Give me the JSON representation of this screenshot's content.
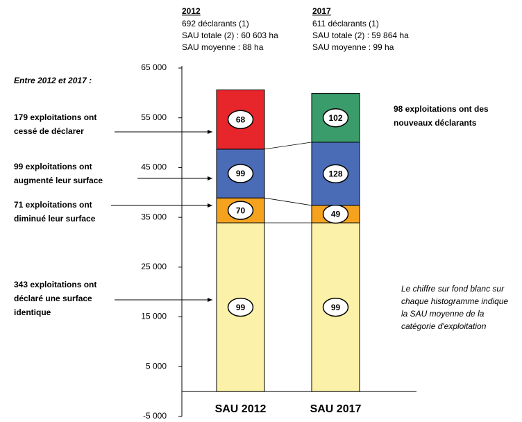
{
  "chart_data": {
    "type": "stacked_bar",
    "categories": [
      "SAU 2012",
      "SAU 2017"
    ],
    "category_years": [
      "2012",
      "2017"
    ],
    "category_notes": [
      [
        "692 déclarants (1)",
        "SAU totale (2) : 60 603 ha",
        "SAU moyenne : 88 ha"
      ],
      [
        "611 déclarants (1)",
        "SAU totale (2) : 59 864 ha",
        "SAU moyenne : 99 ha"
      ]
    ],
    "intro": "Entre 2012 et 2017 :",
    "series": [
      {
        "name": [
          "343 exploitations ont",
          "déclaré une surface",
          "identique"
        ],
        "color": "#fbf1a8",
        "values": [
          33900,
          33900
        ],
        "value_labels": [
          "99",
          "99"
        ]
      },
      {
        "name": [
          "71 exploitations ont",
          "diminué leur surface"
        ],
        "color": "#f5a31e",
        "values": [
          5000,
          3500
        ],
        "value_labels": [
          "70",
          "49"
        ]
      },
      {
        "name": [
          "99 exploitations ont",
          "augmenté leur surface"
        ],
        "color": "#4a6bb6",
        "values": [
          9800,
          12700
        ],
        "value_labels": [
          "99",
          "128"
        ]
      },
      {
        "name": [
          "179 exploitations ont",
          "cessé de déclarer"
        ],
        "color": "#e6262b",
        "values": [
          11900,
          null
        ],
        "value_labels": [
          "68",
          null
        ]
      },
      {
        "name": [
          "98 exploitations ont des",
          "nouveaux déclarants"
        ],
        "color": "#3a9c6b",
        "values": [
          null,
          9800
        ],
        "value_labels": [
          null,
          "102"
        ]
      }
    ],
    "note": [
      "Le chiffre sur fond blanc sur",
      "chaque histogramme indique",
      "la SAU moyenne de la",
      "catégorie d'exploitation"
    ],
    "ylim": [
      -5000,
      65000
    ],
    "yticks": [
      {
        "value": -5000,
        "label": "-5 000"
      },
      {
        "value": 5000,
        "label": "5 000"
      },
      {
        "value": 15000,
        "label": "15 000"
      },
      {
        "value": 25000,
        "label": "25 000"
      },
      {
        "value": 35000,
        "label": "35 000"
      },
      {
        "value": 45000,
        "label": "45 000"
      },
      {
        "value": 55000,
        "label": "55 000"
      },
      {
        "value": 65000,
        "label": "65 000"
      }
    ]
  }
}
